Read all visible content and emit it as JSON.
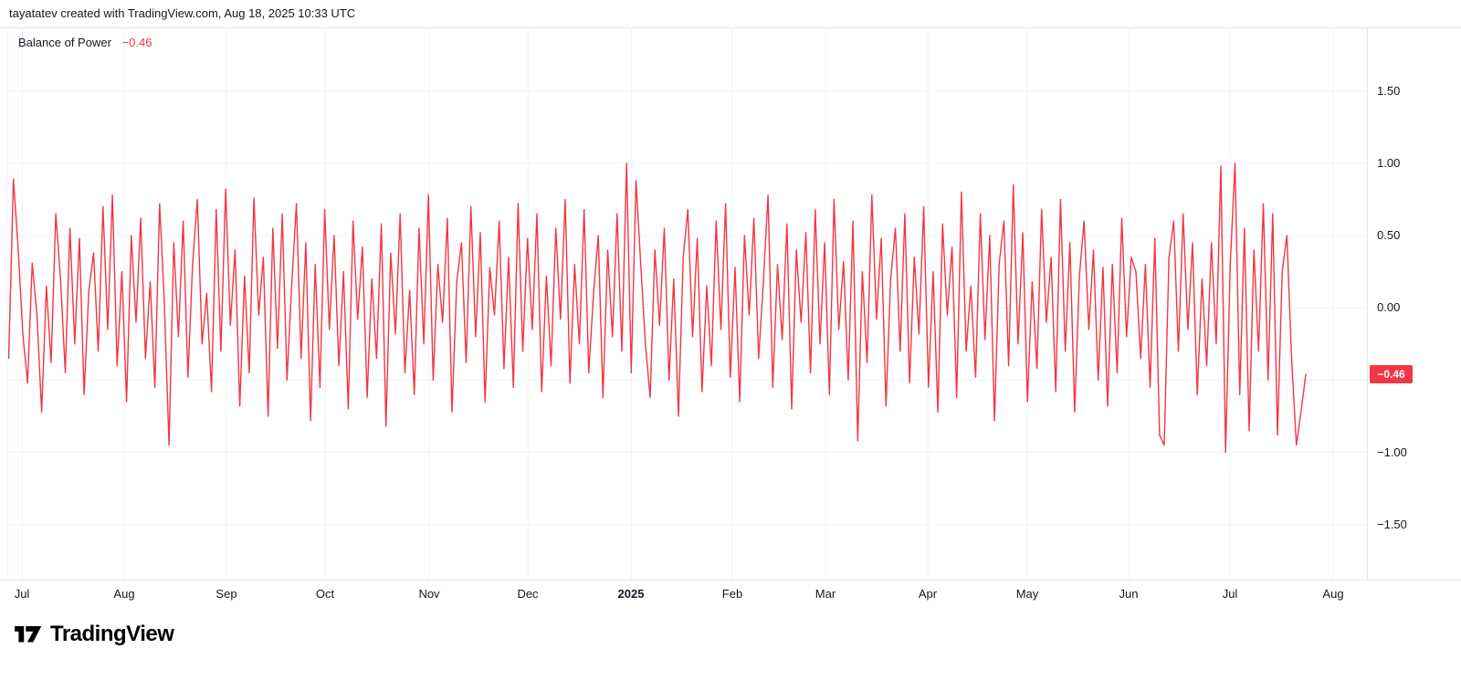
{
  "attribution": "tayatatev created with TradingView.com, Aug 18, 2025 10:33 UTC",
  "indicator": {
    "label": "Balance of Power",
    "value": "−0.46"
  },
  "logo": {
    "text": "TradingView"
  },
  "chart_data": {
    "type": "line",
    "title": "Balance of Power",
    "series_name": "Balance of Power",
    "color": "#F23645",
    "grid": true,
    "badge": {
      "label": "−0.46",
      "bg": "#F23645",
      "text_color": "#FFFFFF"
    },
    "ylim": [
      -1.88,
      1.94
    ],
    "last_value": -0.46,
    "y_ticks": [
      {
        "label": "1.50",
        "value": 1.5
      },
      {
        "label": "1.00",
        "value": 1.0
      },
      {
        "label": "0.50",
        "value": 0.5
      },
      {
        "label": "0.00",
        "value": 0.0
      },
      {
        "label": "−0.50",
        "value": -0.5
      },
      {
        "label": "−1.00",
        "value": -1.0
      },
      {
        "label": "−1.50",
        "value": -1.5
      }
    ],
    "x_ticks": [
      {
        "label": "Jul",
        "pos": 0.011,
        "bold": false
      },
      {
        "label": "Aug",
        "pos": 0.086,
        "bold": false
      },
      {
        "label": "Sep",
        "pos": 0.161,
        "bold": false
      },
      {
        "label": "Oct",
        "pos": 0.234,
        "bold": false
      },
      {
        "label": "Nov",
        "pos": 0.31,
        "bold": false
      },
      {
        "label": "Dec",
        "pos": 0.383,
        "bold": false
      },
      {
        "label": "2025",
        "pos": 0.459,
        "bold": true
      },
      {
        "label": "Feb",
        "pos": 0.533,
        "bold": false
      },
      {
        "label": "Mar",
        "pos": 0.602,
        "bold": false
      },
      {
        "label": "Apr",
        "pos": 0.677,
        "bold": false
      },
      {
        "label": "May",
        "pos": 0.75,
        "bold": false
      },
      {
        "label": "Jun",
        "pos": 0.825,
        "bold": false
      },
      {
        "label": "Jul",
        "pos": 0.899,
        "bold": false
      },
      {
        "label": "Aug",
        "pos": 0.975,
        "bold": false
      }
    ],
    "x_data_start": 0.001,
    "x_data_end": 0.955,
    "values": [
      -0.35,
      0.89,
      0.42,
      -0.18,
      -0.52,
      0.31,
      -0.05,
      -0.72,
      0.15,
      -0.38,
      0.65,
      0.2,
      -0.45,
      0.55,
      -0.25,
      0.48,
      -0.6,
      0.12,
      0.38,
      -0.3,
      0.7,
      -0.15,
      0.78,
      -0.4,
      0.25,
      -0.65,
      0.5,
      -0.1,
      0.62,
      -0.35,
      0.18,
      -0.55,
      0.72,
      0.05,
      -0.95,
      0.45,
      -0.2,
      0.6,
      -0.48,
      0.3,
      0.75,
      -0.25,
      0.1,
      -0.58,
      0.68,
      -0.3,
      0.82,
      -0.12,
      0.4,
      -0.68,
      0.22,
      -0.45,
      0.76,
      -0.05,
      0.35,
      -0.75,
      0.55,
      -0.28,
      0.65,
      -0.5,
      0.15,
      0.72,
      -0.35,
      0.45,
      -0.78,
      0.3,
      -0.55,
      0.68,
      -0.15,
      0.5,
      -0.4,
      0.25,
      -0.7,
      0.6,
      -0.08,
      0.42,
      -0.62,
      0.2,
      -0.35,
      0.58,
      -0.82,
      0.38,
      -0.18,
      0.65,
      -0.45,
      0.12,
      -0.6,
      0.55,
      -0.25,
      0.78,
      -0.5,
      0.3,
      -0.1,
      0.62,
      -0.72,
      0.18,
      0.45,
      -0.38,
      0.7,
      -0.2,
      0.52,
      -0.65,
      0.28,
      -0.05,
      0.6,
      -0.42,
      0.35,
      -0.55,
      0.72,
      -0.3,
      0.48,
      -0.15,
      0.65,
      -0.58,
      0.22,
      -0.4,
      0.55,
      -0.08,
      0.75,
      -0.52,
      0.3,
      -0.25,
      0.68,
      -0.45,
      0.1,
      0.5,
      -0.62,
      0.4,
      -0.2,
      0.65,
      -0.3,
      1.0,
      -0.45,
      0.88,
      0.3,
      -0.25,
      -0.62,
      0.4,
      -0.12,
      0.55,
      -0.5,
      0.2,
      -0.75,
      0.35,
      0.68,
      -0.2,
      0.48,
      -0.58,
      0.15,
      -0.4,
      0.6,
      -0.15,
      0.72,
      -0.48,
      0.28,
      -0.65,
      0.5,
      -0.05,
      0.62,
      -0.35,
      0.18,
      0.78,
      -0.55,
      0.3,
      -0.22,
      0.58,
      -0.7,
      0.4,
      -0.1,
      0.52,
      -0.45,
      0.68,
      -0.25,
      0.45,
      -0.6,
      0.75,
      -0.15,
      0.32,
      -0.5,
      0.6,
      -0.92,
      0.25,
      -0.38,
      0.78,
      -0.08,
      0.48,
      -0.68,
      0.2,
      0.55,
      -0.3,
      0.65,
      -0.52,
      0.35,
      -0.18,
      0.7,
      -0.55,
      0.25,
      -0.72,
      0.58,
      -0.05,
      0.42,
      -0.62,
      0.8,
      -0.3,
      0.15,
      -0.48,
      0.65,
      -0.22,
      0.5,
      -0.78,
      0.3,
      0.6,
      -0.4,
      0.85,
      -0.25,
      0.52,
      -0.65,
      0.18,
      -0.42,
      0.68,
      -0.1,
      0.35,
      -0.58,
      0.75,
      -0.3,
      0.45,
      -0.72,
      0.22,
      0.6,
      -0.15,
      0.4,
      -0.5,
      0.28,
      -0.68,
      0.3,
      -0.45,
      0.62,
      -0.2,
      0.35,
      0.25,
      -0.35,
      0.3,
      -0.55,
      0.48,
      -0.88,
      -0.95,
      0.35,
      0.6,
      -0.3,
      0.65,
      -0.15,
      0.45,
      -0.6,
      0.2,
      -0.4,
      0.45,
      -0.25,
      0.98,
      -1.0,
      0.3,
      1.0,
      -0.6,
      0.55,
      -0.85,
      0.4,
      -0.3,
      0.72,
      -0.5,
      0.65,
      -0.88,
      0.25,
      0.5,
      -0.35,
      -0.95,
      -0.72,
      -0.46
    ]
  }
}
